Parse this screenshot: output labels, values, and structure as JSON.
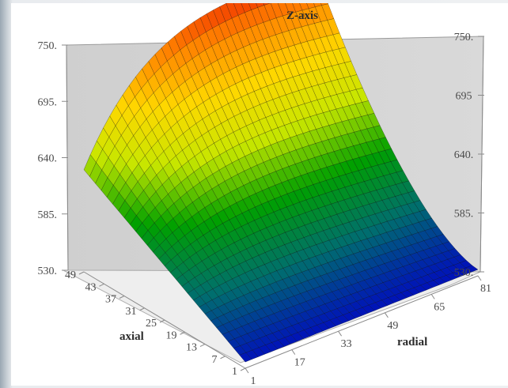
{
  "chart_data": {
    "type": "surface3d",
    "title": "Z-axis",
    "xlabel": "axial",
    "ylabel": "radial",
    "zlabel": "",
    "x_ticks": [
      "49",
      "43",
      "37",
      "31",
      "25",
      "19",
      "13",
      "7",
      "1"
    ],
    "y_ticks": [
      "1",
      "17",
      "33",
      "49",
      "65",
      "81"
    ],
    "z_ticks": [
      "750.",
      "695.",
      "640.",
      "585.",
      "530."
    ],
    "z_ticks_right": [
      "750.",
      "695",
      "640.",
      "585.",
      "530."
    ],
    "xlim": [
      1,
      49
    ],
    "ylim": [
      1,
      81
    ],
    "zlim": [
      530,
      750
    ],
    "colormap": [
      "#0000c8",
      "#006e6e",
      "#00a000",
      "#c8e600",
      "#ffd700",
      "#ff8000",
      "#e60000"
    ],
    "grid": true,
    "surface_samples": {
      "note_axes": "z values at grid corners",
      "axial_1_radial_1": 536,
      "axial_49_radial_1": 625,
      "axial_1_radial_81": 532,
      "axial_49_radial_81": 748
    }
  }
}
